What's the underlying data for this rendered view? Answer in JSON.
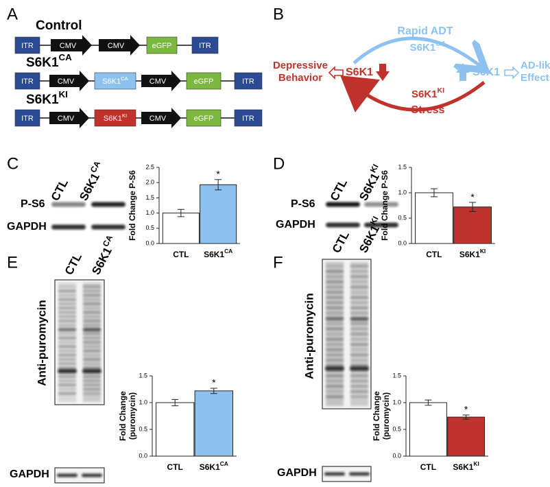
{
  "panel_labels": [
    "A",
    "B",
    "C",
    "D",
    "E",
    "F"
  ],
  "panel_a": {
    "constructs": [
      {
        "title": "Control",
        "elements": [
          {
            "label": "ITR",
            "color": "#2a4a94",
            "shape": "box"
          },
          {
            "label": "CMV",
            "color": "#111111",
            "shape": "arrow"
          },
          {
            "label": "CMV",
            "color": "#111111",
            "shape": "arrow"
          },
          {
            "label": "eGFP",
            "color": "#7cb83f",
            "shape": "box"
          },
          {
            "label": "ITR",
            "color": "#2a4a94",
            "shape": "box"
          }
        ]
      },
      {
        "title": "S6K1CA",
        "elements": [
          {
            "label": "ITR",
            "color": "#2a4a94",
            "shape": "box"
          },
          {
            "label": "CMV",
            "color": "#111111",
            "shape": "arrow"
          },
          {
            "label": "S6K1CA",
            "color": "#8ec2ee",
            "shape": "box"
          },
          {
            "label": "CMV",
            "color": "#111111",
            "shape": "arrow"
          },
          {
            "label": "eGFP",
            "color": "#7cb83f",
            "shape": "box"
          },
          {
            "label": "ITR",
            "color": "#2a4a94",
            "shape": "box"
          }
        ]
      },
      {
        "title": "S6K1KI",
        "elements": [
          {
            "label": "ITR",
            "color": "#2a4a94",
            "shape": "box"
          },
          {
            "label": "CMV",
            "color": "#111111",
            "shape": "arrow"
          },
          {
            "label": "S6K1KI",
            "color": "#c0322b",
            "shape": "box"
          },
          {
            "label": "CMV",
            "color": "#111111",
            "shape": "arrow"
          },
          {
            "label": "eGFP",
            "color": "#7cb83f",
            "shape": "box"
          },
          {
            "label": "ITR",
            "color": "#2a4a94",
            "shape": "box"
          }
        ]
      }
    ]
  },
  "panel_b": {
    "top_arrow": [
      "Rapid ADT",
      "S6K1CA"
    ],
    "bottom_arrow": [
      "S6K1KI",
      "Stress"
    ],
    "left_outcome": [
      "Depressive",
      "Behavior"
    ],
    "left_node": "S6K1",
    "right_node": "S6K1",
    "right_outcome": [
      "AD-like",
      "Effects"
    ]
  },
  "blots": [
    {
      "lanes": [
        "CTL",
        "S6K1CA"
      ],
      "rows": [
        "P-S6",
        "GAPDH"
      ]
    },
    {
      "lanes": [
        "CTL",
        "S6K1KI"
      ],
      "rows": [
        "P-S6",
        "GAPDH"
      ]
    },
    {
      "lanes": [
        "CTL",
        "S6K1CA"
      ],
      "main": "Anti-puromycin",
      "rows": [
        "GAPDH"
      ]
    },
    {
      "lanes": [
        "CTL",
        "S6K1KI"
      ],
      "main": "Anti-puromycin",
      "rows": [
        "GAPDH"
      ]
    }
  ],
  "chart_data": [
    {
      "type": "bar",
      "categories": [
        "CTL",
        "S6K1CA"
      ],
      "values": [
        1.0,
        1.93
      ],
      "errors": [
        0.12,
        0.17
      ],
      "colors": [
        "#ffffff",
        "#8ec2ee"
      ],
      "ylabel": [
        "Fold Change P-S6"
      ],
      "ylim": [
        0,
        2.5
      ],
      "yticks": [
        {
          "value": 0,
          "label": "0.0"
        },
        {
          "value": 0.5,
          "label": "0.5"
        },
        {
          "value": 1,
          "label": "1.0"
        },
        {
          "value": 1.5,
          "label": "1.5"
        },
        {
          "value": 2,
          "label": "2.0"
        },
        {
          "value": 2.5,
          "label": "2.5"
        }
      ],
      "annotations": [
        {
          "text": "*",
          "category": "S6K1CA"
        }
      ]
    },
    {
      "type": "bar",
      "categories": [
        "CTL",
        "S6K1KI"
      ],
      "values": [
        1.0,
        0.72
      ],
      "errors": [
        0.08,
        0.09
      ],
      "colors": [
        "#ffffff",
        "#c0322b"
      ],
      "ylabel": [
        "Fold Change P-S6"
      ],
      "ylim": [
        0,
        1.5
      ],
      "yticks": [
        {
          "value": 0,
          "label": "0.0"
        },
        {
          "value": 0.5,
          "label": "0.5"
        },
        {
          "value": 1,
          "label": "1.0"
        },
        {
          "value": 1.5,
          "label": "1.5"
        }
      ],
      "annotations": [
        {
          "text": "*",
          "category": "S6K1KI"
        }
      ]
    },
    {
      "type": "bar",
      "categories": [
        "CTL",
        "S6K1CA"
      ],
      "values": [
        1.0,
        1.22
      ],
      "errors": [
        0.06,
        0.05
      ],
      "colors": [
        "#ffffff",
        "#8ec2ee"
      ],
      "ylabel": [
        "Fold Change",
        "(puromycin)"
      ],
      "ylim": [
        0,
        1.5
      ],
      "yticks": [
        {
          "value": 0,
          "label": "0.0"
        },
        {
          "value": 0.5,
          "label": "0.5"
        },
        {
          "value": 1,
          "label": "1.0"
        },
        {
          "value": 1.5,
          "label": "1.5"
        }
      ],
      "annotations": [
        {
          "text": "*",
          "category": "S6K1CA"
        }
      ]
    },
    {
      "type": "bar",
      "categories": [
        "CTL",
        "S6K1KI"
      ],
      "values": [
        1.0,
        0.73
      ],
      "errors": [
        0.05,
        0.04
      ],
      "colors": [
        "#ffffff",
        "#c0322b"
      ],
      "ylabel": [
        "Fold Change",
        "(puromycin)"
      ],
      "ylim": [
        0,
        1.5
      ],
      "yticks": [
        {
          "value": 0,
          "label": "0.0"
        },
        {
          "value": 0.5,
          "label": "0.5"
        },
        {
          "value": 1,
          "label": "1.0"
        },
        {
          "value": 1.5,
          "label": "1.5"
        }
      ],
      "annotations": [
        {
          "text": "*",
          "category": "S6K1KI"
        }
      ]
    }
  ]
}
